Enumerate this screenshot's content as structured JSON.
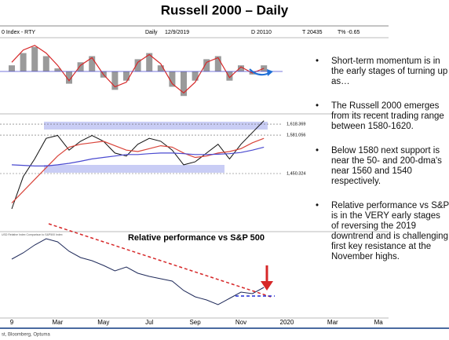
{
  "title": "Russell 2000 – Daily",
  "header": {
    "instrument": "0 Index - RTY",
    "period": "Daily",
    "date": "12/9/2019",
    "d": "D 20110",
    "t": "T 20435",
    "tpct": "T% -0.65"
  },
  "chart_data": [
    {
      "type": "oscillator",
      "categories": [
        "9",
        null,
        null,
        null,
        "Mar",
        null,
        null,
        null,
        "May",
        null,
        null,
        null,
        "Jul",
        null,
        null,
        null,
        "Sep",
        null,
        null,
        null,
        "Nov",
        null,
        null,
        null,
        "2020",
        null,
        null,
        null,
        "Mar",
        null,
        null,
        null,
        "Ma"
      ],
      "ylim": [
        -1,
        1
      ],
      "series": [
        {
          "kind": "bar",
          "color": "#9a9a9a",
          "values": [
            0.2,
            0.6,
            0.8,
            0.5,
            0.1,
            -0.4,
            0.3,
            0.5,
            -0.2,
            -0.6,
            -0.3,
            0.4,
            0.6,
            0.2,
            -0.5,
            -0.8,
            -0.3,
            0.4,
            0.5,
            -0.3,
            0.2,
            -0.1,
            0.2,
            null,
            null,
            null,
            null,
            null,
            null,
            null,
            null,
            null,
            null
          ]
        },
        {
          "kind": "line",
          "color": "#d62728",
          "values": [
            0.3,
            0.7,
            0.85,
            0.6,
            0.2,
            -0.3,
            0.2,
            0.45,
            -0.1,
            -0.5,
            -0.35,
            0.3,
            0.55,
            0.25,
            -0.4,
            -0.7,
            -0.35,
            0.3,
            0.45,
            -0.2,
            0.15,
            -0.05,
            0.1,
            null,
            null,
            null,
            null,
            null,
            null,
            null,
            null,
            null,
            null
          ]
        }
      ]
    },
    {
      "type": "line",
      "categories": [
        "9",
        null,
        null,
        null,
        "Mar",
        null,
        null,
        null,
        "May",
        null,
        null,
        null,
        "Jul",
        null,
        null,
        null,
        "Sep",
        null,
        null,
        null,
        "Nov",
        null,
        null,
        null,
        "2020",
        null,
        null,
        null,
        "Mar",
        null,
        null,
        null,
        "Ma"
      ],
      "ylim": [
        1266,
        1640
      ],
      "yticks": [
        {
          "value": 1618.369,
          "label": "1,618.369"
        },
        {
          "value": 1581.056,
          "label": "1,581.056"
        },
        {
          "value": 1450.324,
          "label": "1,450.324"
        }
      ],
      "series": [
        {
          "color": "#111111",
          "values": [
            1330,
            1440,
            1500,
            1570,
            1580,
            1530,
            1560,
            1580,
            1560,
            1520,
            1510,
            1550,
            1570,
            1560,
            1530,
            1480,
            1490,
            1520,
            1550,
            1500,
            1550,
            1590,
            1630,
            null,
            null,
            null,
            null,
            null,
            null,
            null,
            null,
            null,
            null
          ]
        },
        {
          "color": "#d9443a",
          "values": [
            1350,
            1390,
            1430,
            1470,
            1510,
            1540,
            1550,
            1555,
            1560,
            1545,
            1530,
            1525,
            1535,
            1545,
            1540,
            1520,
            1505,
            1510,
            1520,
            1525,
            1535,
            1555,
            1570,
            null,
            null,
            null,
            null,
            null,
            null,
            null,
            null,
            null,
            null
          ]
        },
        {
          "color": "#4a4ad0",
          "values": [
            1480,
            1478,
            1476,
            1476,
            1480,
            1485,
            1492,
            1500,
            1505,
            1510,
            1515,
            1515,
            1518,
            1520,
            1520,
            1518,
            1515,
            1515,
            1516,
            1518,
            1522,
            1530,
            1540,
            null,
            null,
            null,
            null,
            null,
            null,
            null,
            null,
            null,
            null
          ]
        }
      ]
    },
    {
      "type": "line",
      "title": "Relative performance vs S&P 500",
      "subtitle": "USD Relative Index Comparison to S&P500 Index",
      "categories": [
        "9",
        null,
        null,
        null,
        "Mar",
        null,
        null,
        null,
        "May",
        null,
        null,
        null,
        "Jul",
        null,
        null,
        null,
        "Sep",
        null,
        null,
        null,
        "Nov",
        null,
        null,
        null,
        "2020",
        null,
        null,
        null,
        "Mar",
        null,
        null,
        null,
        "Ma"
      ],
      "ylim": [
        0,
        100
      ],
      "series": [
        {
          "color": "#1f2a5a",
          "values": [
            70,
            78,
            88,
            96,
            92,
            80,
            72,
            68,
            62,
            55,
            60,
            52,
            48,
            45,
            42,
            30,
            22,
            18,
            12,
            20,
            28,
            26,
            34,
            null,
            null,
            null,
            null,
            null,
            null,
            null,
            null,
            null,
            null
          ]
        }
      ]
    }
  ],
  "bullets": [
    "Short-term momentum is in the early stages of turning up as…",
    "The Russell 2000 emerges from its recent trading range between 1580-1620.",
    "Below 1580 next support is near the 50- and 200-dma's near 1560 and 1540 respectively.",
    "Relative performance vs S&P is in the VERY early stages of reversing the 2019 downtrend and is challenging first key resistance at the November highs."
  ],
  "source": "st, Bloomberg, Optuma"
}
